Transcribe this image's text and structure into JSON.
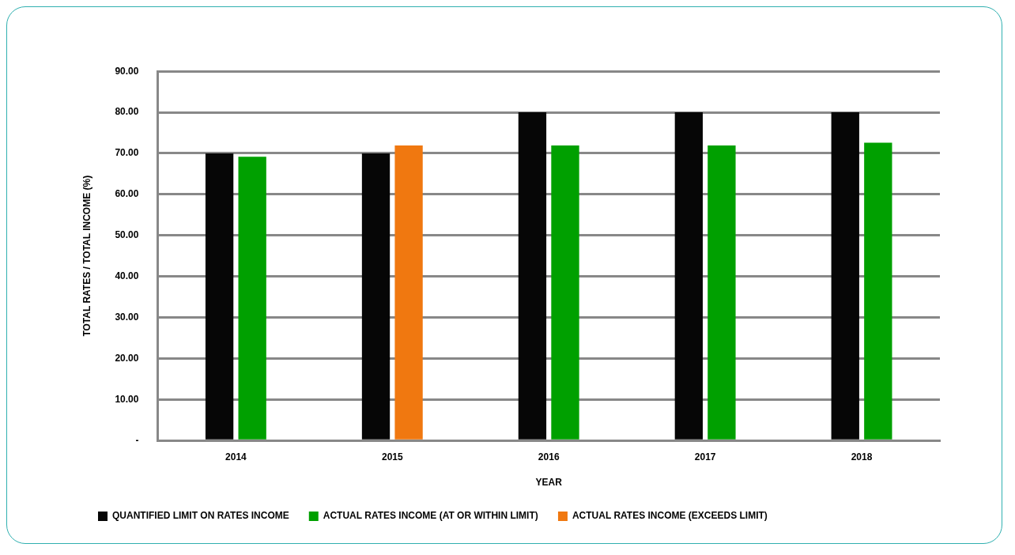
{
  "chart_data": {
    "type": "bar",
    "xlabel": "YEAR",
    "ylabel": "TOTAL RATES / TOTAL INCOME (%)",
    "categories": [
      "2014",
      "2015",
      "2016",
      "2017",
      "2018"
    ],
    "series": [
      {
        "name": "QUANTIFIED LIMIT ON RATES INCOME",
        "color": "#060606",
        "values": [
          70.0,
          70.0,
          80.0,
          80.0,
          80.0
        ]
      },
      {
        "name": "ACTUAL RATES INCOME (AT OR WITHIN LIMIT)",
        "color": "#00a000",
        "values": [
          69.2,
          null,
          71.9,
          71.9,
          72.6
        ]
      },
      {
        "name": "ACTUAL RATES INCOME (EXCEEDS LIMIT)",
        "color": "#f07810",
        "values": [
          null,
          71.9,
          null,
          null,
          null
        ]
      }
    ],
    "ylim": [
      0,
      90
    ],
    "yticks": [
      {
        "value": 0,
        "label": "-"
      },
      {
        "value": 10,
        "label": "10.00"
      },
      {
        "value": 20,
        "label": "20.00"
      },
      {
        "value": 30,
        "label": "30.00"
      },
      {
        "value": 40,
        "label": "40.00"
      },
      {
        "value": 50,
        "label": "50.00"
      },
      {
        "value": 60,
        "label": "60.00"
      },
      {
        "value": 70,
        "label": "70.00"
      },
      {
        "value": 80,
        "label": "80.00"
      },
      {
        "value": 90,
        "label": "90.00"
      }
    ],
    "grid": "y",
    "legend": "bottom"
  }
}
